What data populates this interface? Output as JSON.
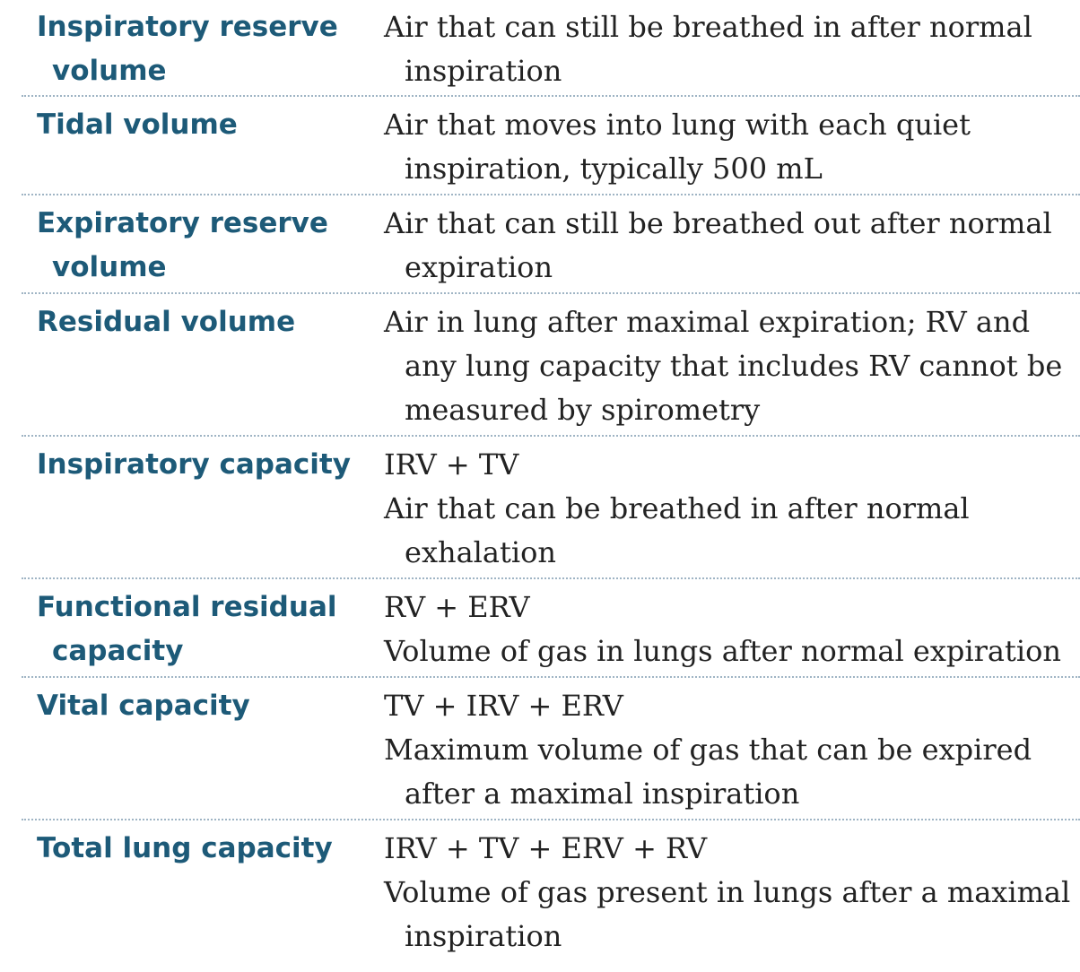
{
  "rows": [
    {
      "term": [
        "Inspiratory reserve",
        "volume"
      ],
      "formula": "",
      "desc": [
        "Air that can still be breathed in after normal",
        "inspiration"
      ]
    },
    {
      "term": [
        "Tidal volume"
      ],
      "formula": "",
      "desc": [
        "Air that moves into lung with each quiet",
        "inspiration, typically 500 mL"
      ]
    },
    {
      "term": [
        "Expiratory reserve",
        "volume"
      ],
      "formula": "",
      "desc": [
        "Air that can still be breathed out after normal",
        "expiration"
      ]
    },
    {
      "term": [
        "Residual volume"
      ],
      "formula": "",
      "desc": [
        "Air in lung after maximal expiration; RV and",
        "any lung capacity that includes RV cannot be",
        "measured by spirometry"
      ]
    },
    {
      "term": [
        "Inspiratory capacity"
      ],
      "formula": "IRV + TV",
      "desc": [
        "Air that can be breathed in after normal",
        "exhalation"
      ]
    },
    {
      "term": [
        "Functional residual",
        "capacity"
      ],
      "formula": "RV + ERV",
      "desc": [
        "Volume of gas in lungs after normal expiration"
      ]
    },
    {
      "term": [
        "Vital capacity"
      ],
      "formula": "TV + IRV + ERV",
      "desc": [
        "Maximum volume of gas that can be expired",
        "after a maximal inspiration"
      ]
    },
    {
      "term": [
        "Total lung capacity"
      ],
      "formula": "IRV + TV + ERV + RV",
      "desc": [
        "Volume of gas present in lungs after a maximal",
        "inspiration"
      ]
    }
  ]
}
